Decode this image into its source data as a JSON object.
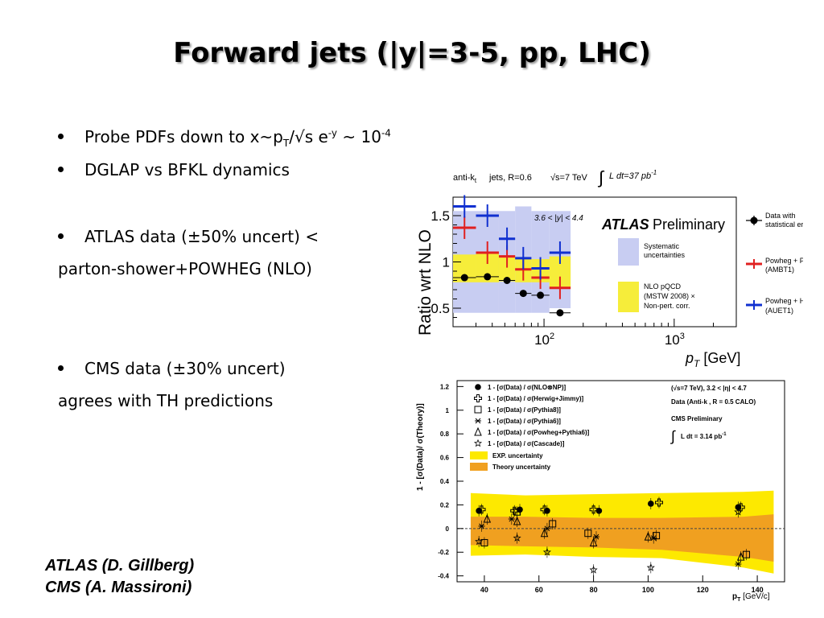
{
  "slide": {
    "title": "Forward jets (|y|=3-5, pp, LHC)",
    "bullet1_pre": "Probe PDFs down to x~p",
    "bullet1_sub": "T",
    "bullet1_mid": "/√s e",
    "bullet1_sup1": "-y",
    "bullet1_post": " ~ 10",
    "bullet1_sup2": "-4",
    "bullet2": "DGLAP vs BFKL dynamics",
    "bullet3_line1": "ATLAS data (±50% uncert) <",
    "bullet3_line2": "parton-shower+POWHEG (NLO)",
    "bullet4_line1": "CMS data  (±30% uncert)",
    "bullet4_line2": "agrees with TH predictions",
    "credit1": "ATLAS (D. Gillberg)",
    "credit2": "CMS (A. Massironi)"
  },
  "chart_data": [
    {
      "type": "scatter",
      "xscale": "log",
      "xlim": [
        20,
        3000
      ],
      "ylim": [
        0.3,
        1.7
      ],
      "xlabel": "p",
      "xlabel_sub": "T",
      "xlabel_unit": " [GeV]",
      "ylabel": "Ratio wrt NLO",
      "x_ticks": [
        {
          "value": 100,
          "base": "10",
          "exp": "2"
        },
        {
          "value": 1000,
          "base": "10",
          "exp": "3"
        }
      ],
      "y_ticks": [
        0.5,
        1,
        1.5
      ],
      "header": {
        "algo": "anti-k",
        "algo_sub": "t",
        "jets": "jets,  R=0.6",
        "energy": "√s=7 TeV",
        "lumi_int": "∫",
        "lumi": "L dt=37 pb",
        "lumi_sup": "-1"
      },
      "rapidity_label": "3.6 < |y| < 4.4",
      "experiment": "ATLAS",
      "status": "Preliminary",
      "legend": {
        "data": [
          "Data with",
          "statistical error"
        ],
        "syst": [
          "Systematic",
          "uncertainties"
        ],
        "nlo": [
          "NLO pQCD",
          "(MSTW 2008) ×",
          "Non-pert. corr."
        ],
        "pythia": [
          "Powheg + Pythia",
          "(AMBT1)"
        ],
        "herwig": [
          "Powheg + Herwig",
          "(AUET1)"
        ]
      },
      "bins": [
        {
          "lo": 20,
          "hi": 30,
          "data": 0.83,
          "pythia": 1.37,
          "herwig": 1.6,
          "syst_lo": 0.45,
          "syst_hi": 1.55,
          "nlo_lo": 0.78,
          "nlo_hi": 1.08
        },
        {
          "lo": 30,
          "hi": 45,
          "data": 0.84,
          "pythia": 1.1,
          "herwig": 1.5,
          "syst_lo": 0.45,
          "syst_hi": 1.55,
          "nlo_lo": 0.78,
          "nlo_hi": 1.09
        },
        {
          "lo": 45,
          "hi": 60,
          "data": 0.8,
          "pythia": 1.06,
          "herwig": 1.25,
          "syst_lo": 0.45,
          "syst_hi": 1.55,
          "nlo_lo": 0.79,
          "nlo_hi": 1.06
        },
        {
          "lo": 60,
          "hi": 80,
          "data": 0.66,
          "pythia": 0.92,
          "herwig": 1.04,
          "syst_lo": 0.45,
          "syst_hi": 1.6,
          "nlo_lo": 0.78,
          "nlo_hi": 1.05
        },
        {
          "lo": 80,
          "hi": 110,
          "data": 0.64,
          "pythia": 0.83,
          "herwig": 0.93,
          "syst_lo": 0.45,
          "syst_hi": 1.55,
          "nlo_lo": 0.78,
          "nlo_hi": 1.03
        },
        {
          "lo": 110,
          "hi": 160,
          "data": 0.45,
          "pythia": 0.72,
          "herwig": 1.1,
          "syst_lo": 0.5,
          "syst_hi": 1.55,
          "nlo_lo": 0.72,
          "nlo_hi": 1.06
        }
      ]
    },
    {
      "type": "scatter",
      "xlim": [
        30,
        150
      ],
      "ylim": [
        -0.45,
        1.25
      ],
      "xlabel": "p",
      "xlabel_sub": "T",
      "xlabel_unit": " [GeV/c]",
      "ylabel": "1 - [σ(Data)/ σ(Theory)]",
      "x_ticks": [
        40,
        60,
        80,
        100,
        120,
        140
      ],
      "y_ticks": [
        {
          "value": 1.2,
          "label": "1.2"
        },
        {
          "value": 1.0,
          "label": "1"
        },
        {
          "value": 0.8,
          "label": "0.8"
        },
        {
          "value": 0.6,
          "label": "0.6"
        },
        {
          "value": 0.4,
          "label": "0.4"
        },
        {
          "value": 0.2,
          "label": "0.2"
        },
        {
          "value": 0.0,
          "label": "0"
        },
        {
          "value": -0.2,
          "label": "-0.2"
        },
        {
          "value": -0.4,
          "label": "-0.4"
        }
      ],
      "info": [
        "(√s=7 TeV), 3.2 < |η| < 4.7",
        "Data (Anti-k , R = 0.5 CALO)",
        "CMS Preliminary",
        "L dt = 3.14 pb"
      ],
      "info_lumi_sup": "-1",
      "legend": [
        "1 - [σ(Data) / σ(NLO⊗NP)]",
        "1 - [σ(Data) / σ(Herwig+Jimmy)]",
        "1 - [σ(Data) / σ(Pythia8)]",
        "1 - [σ(Data) / σ(Pythia6)]",
        "1 - [σ(Data) / σ(Powheg+Pythia6)]",
        "1 - [σ(Data) / σ(Cascade)]",
        "EXP. uncertainty",
        "Theory uncertainty"
      ],
      "exp_band": {
        "x": [
          35,
          55,
          80,
          105,
          135,
          146
        ],
        "lo": [
          -0.23,
          -0.22,
          -0.24,
          -0.25,
          -0.33,
          -0.38
        ],
        "hi": [
          0.3,
          0.28,
          0.29,
          0.3,
          0.31,
          0.32
        ]
      },
      "theory_band": {
        "x": [
          35,
          55,
          80,
          105,
          135,
          146
        ],
        "lo": [
          -0.14,
          -0.15,
          -0.16,
          -0.18,
          -0.24,
          -0.28
        ],
        "hi": [
          0.1,
          0.1,
          0.09,
          0.09,
          0.1,
          0.12
        ]
      },
      "series": [
        {
          "name": "NLO⊗NP",
          "marker": "filled-circle",
          "x": [
            38,
            53,
            63,
            82,
            101,
            133
          ],
          "y": [
            0.15,
            0.16,
            0.15,
            0.15,
            0.21,
            0.18
          ]
        },
        {
          "name": "Herwig+Jimmy",
          "marker": "open-cross",
          "x": [
            39,
            51,
            62,
            80,
            104,
            134
          ],
          "y": [
            0.16,
            0.15,
            0.16,
            0.16,
            0.22,
            0.18
          ]
        },
        {
          "name": "Pythia8",
          "marker": "open-square",
          "x": [
            40,
            52,
            65,
            78,
            103,
            136
          ],
          "y": [
            -0.12,
            0.14,
            0.04,
            -0.04,
            -0.06,
            -0.22
          ]
        },
        {
          "name": "Pythia6",
          "marker": "asterisk",
          "x": [
            39,
            50,
            63,
            81,
            102,
            133
          ],
          "y": [
            0.02,
            0.08,
            0.0,
            -0.07,
            -0.08,
            -0.3
          ]
        },
        {
          "name": "Powheg+Pythia6",
          "marker": "open-triangle",
          "x": [
            41,
            52,
            62,
            80,
            100,
            134
          ],
          "y": [
            0.08,
            0.06,
            -0.04,
            -0.12,
            -0.07,
            -0.24
          ]
        },
        {
          "name": "Cascade",
          "marker": "star",
          "x": [
            38,
            52,
            63,
            80,
            101,
            133
          ],
          "y": [
            -0.11,
            -0.08,
            -0.2,
            -0.35,
            -0.33,
            0.14
          ]
        }
      ]
    }
  ]
}
